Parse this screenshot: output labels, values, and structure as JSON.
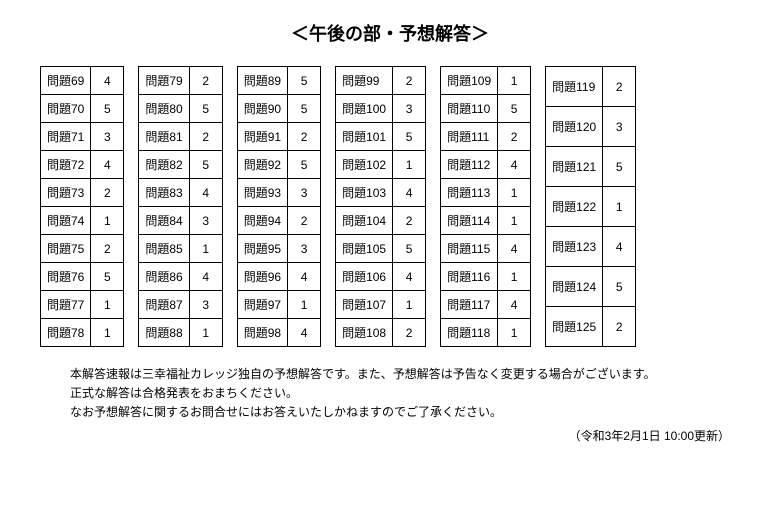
{
  "title": "＜午後の部・予想解答＞",
  "label_prefix": "問題",
  "columns": [
    [
      {
        "n": 69,
        "a": 4
      },
      {
        "n": 70,
        "a": 5
      },
      {
        "n": 71,
        "a": 3
      },
      {
        "n": 72,
        "a": 4
      },
      {
        "n": 73,
        "a": 2
      },
      {
        "n": 74,
        "a": 1
      },
      {
        "n": 75,
        "a": 2
      },
      {
        "n": 76,
        "a": 5
      },
      {
        "n": 77,
        "a": 1
      },
      {
        "n": 78,
        "a": 1
      }
    ],
    [
      {
        "n": 79,
        "a": 2
      },
      {
        "n": 80,
        "a": 5
      },
      {
        "n": 81,
        "a": 2
      },
      {
        "n": 82,
        "a": 5
      },
      {
        "n": 83,
        "a": 4
      },
      {
        "n": 84,
        "a": 3
      },
      {
        "n": 85,
        "a": 1
      },
      {
        "n": 86,
        "a": 4
      },
      {
        "n": 87,
        "a": 3
      },
      {
        "n": 88,
        "a": 1
      }
    ],
    [
      {
        "n": 89,
        "a": 5
      },
      {
        "n": 90,
        "a": 5
      },
      {
        "n": 91,
        "a": 2
      },
      {
        "n": 92,
        "a": 5
      },
      {
        "n": 93,
        "a": 3
      },
      {
        "n": 94,
        "a": 2
      },
      {
        "n": 95,
        "a": 3
      },
      {
        "n": 96,
        "a": 4
      },
      {
        "n": 97,
        "a": 1
      },
      {
        "n": 98,
        "a": 4
      }
    ],
    [
      {
        "n": 99,
        "a": 2
      },
      {
        "n": 100,
        "a": 3
      },
      {
        "n": 101,
        "a": 5
      },
      {
        "n": 102,
        "a": 1
      },
      {
        "n": 103,
        "a": 4
      },
      {
        "n": 104,
        "a": 2
      },
      {
        "n": 105,
        "a": 5
      },
      {
        "n": 106,
        "a": 4
      },
      {
        "n": 107,
        "a": 1
      },
      {
        "n": 108,
        "a": 2
      }
    ],
    [
      {
        "n": 109,
        "a": 1
      },
      {
        "n": 110,
        "a": 5
      },
      {
        "n": 111,
        "a": 2
      },
      {
        "n": 112,
        "a": 4
      },
      {
        "n": 113,
        "a": 1
      },
      {
        "n": 114,
        "a": 1
      },
      {
        "n": 115,
        "a": 4
      },
      {
        "n": 116,
        "a": 1
      },
      {
        "n": 117,
        "a": 4
      },
      {
        "n": 118,
        "a": 1
      }
    ],
    [
      {
        "n": 119,
        "a": 2
      },
      {
        "n": 120,
        "a": 3
      },
      {
        "n": 121,
        "a": 5
      },
      {
        "n": 122,
        "a": 1
      },
      {
        "n": 123,
        "a": 4
      },
      {
        "n": 124,
        "a": 5
      },
      {
        "n": 125,
        "a": 2
      }
    ]
  ],
  "notes": [
    "本解答速報は三幸福祉カレッジ独自の予想解答です。また、予想解答は予告なく変更する場合がございます。",
    "正式な解答は合格発表をおまちください。",
    "なお予想解答に関するお問合せにはお答えいたしかねますのでご了承ください。"
  ],
  "update": "（令和3年2月1日 10:00更新）"
}
